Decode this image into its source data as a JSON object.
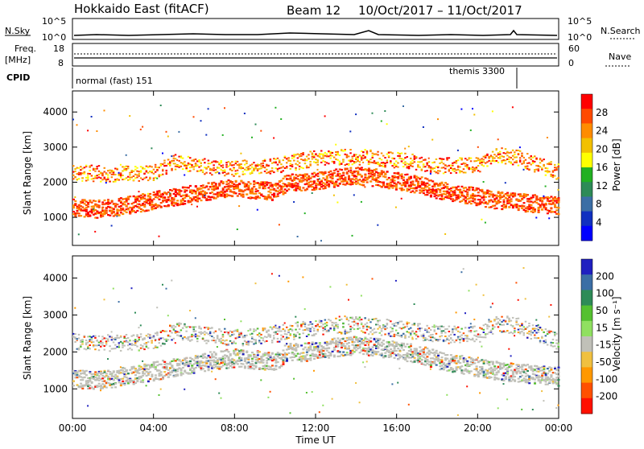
{
  "header": {
    "station": "Hokkaido East (fitACF)",
    "beam": "Beam 12",
    "dates": "10/Oct/2017 – 11/Oct/2017"
  },
  "top_panels": {
    "nsky_label": "N.Sky",
    "nsky_ticks": [
      "10^5",
      "10^0"
    ],
    "nsky_right_ticks": [
      "10^5",
      "10^0"
    ],
    "nsearch_label": "N.Search",
    "freq_label": "Freq.",
    "freq_unit": "[MHz]",
    "freq_ticks": [
      "18",
      "8"
    ],
    "nave_label": "Nave",
    "nave_ticks": [
      "60",
      "0"
    ],
    "cpid_label": "CPID",
    "cpid_modes": [
      "normal (fast) 151",
      "themis 3300"
    ]
  },
  "chart_data": [
    {
      "type": "heatmap",
      "quantity": "Power",
      "ylabel": "Slant Range [km]",
      "xlabel": "",
      "x_ticks": [
        "00:00",
        "04:00",
        "08:00",
        "12:00",
        "16:00",
        "20:00",
        "00:00"
      ],
      "y_ticks": [
        1000,
        2000,
        3000,
        4000
      ],
      "ylim": [
        200,
        4600
      ],
      "colorbar": {
        "label": "Power [dB]",
        "ticks": [
          28,
          24,
          20,
          16,
          12,
          8,
          4
        ],
        "colors": [
          "#ff0000",
          "#ff4a00",
          "#ff8c00",
          "#f2c000",
          "#ffff00",
          "#22b022",
          "#2e8b57",
          "#3b6ea5",
          "#1030c0",
          "#0000ff"
        ]
      },
      "series": [
        {
          "x_hours": [
            0,
            1,
            2,
            3,
            4,
            5,
            6,
            7,
            8,
            9,
            10,
            10.5,
            11,
            12,
            13,
            14,
            15,
            16,
            17,
            18,
            19,
            20,
            21,
            22,
            23,
            24
          ],
          "y_km": [
            1300,
            1250,
            1300,
            1400,
            1500,
            1600,
            1700,
            1800,
            1850,
            1800,
            1750,
            2000,
            2000,
            2050,
            2150,
            2200,
            2150,
            2050,
            1950,
            1800,
            1700,
            1600,
            1500,
            1450,
            1400,
            1350
          ]
        },
        {
          "x_hours": [
            0,
            2,
            4,
            5,
            6,
            8,
            10,
            12,
            14,
            16,
            18,
            20,
            21,
            22,
            23,
            24
          ],
          "y_km": [
            2300,
            2250,
            2300,
            2600,
            2500,
            2400,
            2500,
            2700,
            2750,
            2650,
            2500,
            2500,
            2800,
            2700,
            2500,
            2300
          ]
        }
      ]
    },
    {
      "type": "heatmap",
      "quantity": "Velocity",
      "ylabel": "Slant Range [km]",
      "xlabel": "Time UT",
      "x_ticks": [
        "00:00",
        "04:00",
        "08:00",
        "12:00",
        "16:00",
        "20:00",
        "00:00"
      ],
      "y_ticks": [
        1000,
        2000,
        3000,
        4000
      ],
      "ylim": [
        200,
        4600
      ],
      "colorbar": {
        "label": "Velocity [m s⁻¹]",
        "ticks": [
          200,
          100,
          50,
          15,
          -15,
          -50,
          -100,
          -200
        ],
        "colors": [
          "#2020c0",
          "#3b6ea5",
          "#2e8b57",
          "#55c030",
          "#90e060",
          "#c0c0b8",
          "#f0c040",
          "#ff9800",
          "#ff5000",
          "#ff1000"
        ]
      }
    }
  ]
}
